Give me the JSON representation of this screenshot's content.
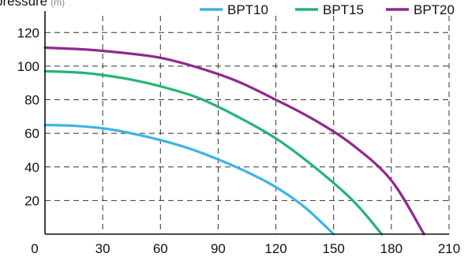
{
  "chart_data": {
    "type": "line",
    "ylabel": "pressure",
    "ylabel_unit": "(m)",
    "xlabel": "",
    "xlim": [
      0,
      210
    ],
    "ylim": [
      0,
      130
    ],
    "xticks": [
      0,
      30,
      60,
      90,
      120,
      150,
      180,
      210
    ],
    "yticks": [
      20,
      40,
      60,
      80,
      100,
      120
    ],
    "grid": true,
    "legend_position": "top-right",
    "series": [
      {
        "name": "BPT10",
        "color": "#3cb4e6",
        "x": [
          0,
          15,
          30,
          45,
          60,
          75,
          90,
          105,
          120,
          135,
          150
        ],
        "y": [
          65,
          64.5,
          63,
          60,
          56,
          51,
          44.5,
          37,
          28,
          16,
          0
        ]
      },
      {
        "name": "BPT15",
        "color": "#22b573",
        "x": [
          0,
          20,
          40,
          60,
          80,
          100,
          120,
          140,
          160,
          175
        ],
        "y": [
          97,
          96,
          93,
          88,
          81,
          70,
          57,
          40,
          20,
          0
        ]
      },
      {
        "name": "BPT20",
        "color": "#93278f",
        "x": [
          0,
          20,
          40,
          60,
          80,
          100,
          120,
          140,
          160,
          180,
          197
        ],
        "y": [
          111,
          110,
          108,
          105,
          99,
          91,
          80,
          68,
          53,
          32,
          0
        ]
      }
    ]
  }
}
